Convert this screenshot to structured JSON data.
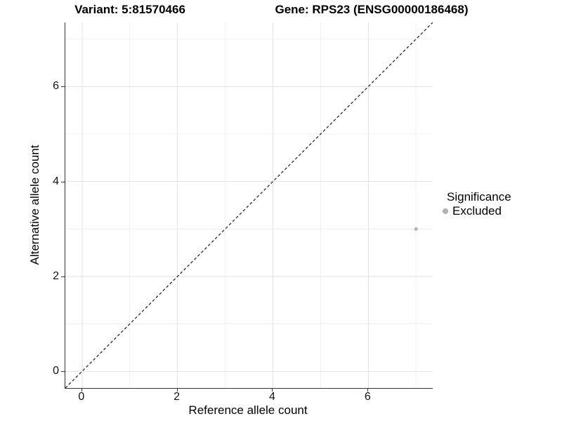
{
  "figure": {
    "titles": [
      {
        "text": "Variant: 5:81570466"
      },
      {
        "text": "Gene: RPS23 (ENSG00000186468)"
      }
    ]
  },
  "axes": {
    "x": {
      "label": "Reference allele count"
    },
    "y": {
      "label": "Alternative allele count"
    }
  },
  "legend": {
    "title": "Significance",
    "items": [
      {
        "label": "Excluded",
        "color": "#b3b3b3"
      }
    ]
  },
  "chart_data": {
    "type": "scatter",
    "title": "Variant: 5:81570466 | Gene: RPS23 (ENSG00000186468)",
    "xlabel": "Reference allele count",
    "ylabel": "Alternative allele count",
    "xlim": [
      -0.35,
      7.35
    ],
    "ylim": [
      -0.35,
      7.35
    ],
    "x_major_ticks": [
      0,
      2,
      4,
      6
    ],
    "y_major_ticks": [
      0,
      2,
      4,
      6
    ],
    "x_minor_ticks": [
      1,
      3,
      5,
      7
    ],
    "y_minor_ticks": [
      1,
      3,
      5,
      7
    ],
    "grid": "major+minor on white background",
    "legend_position": "right",
    "series": [
      {
        "name": "Excluded",
        "color": "#b3b3b3",
        "points": [
          [
            7,
            3
          ]
        ]
      }
    ],
    "reference_line": {
      "kind": "identity y=x",
      "style": "dashed",
      "color": "#1a1a1a",
      "from": [
        -0.35,
        -0.35
      ],
      "to": [
        7.35,
        7.35
      ]
    }
  },
  "colors": {
    "background": "#ffffff",
    "grid_major": "#e3e3e3",
    "grid_minor": "#f0f0f0",
    "axis_line": "#333333",
    "point": "#b3b3b3"
  }
}
